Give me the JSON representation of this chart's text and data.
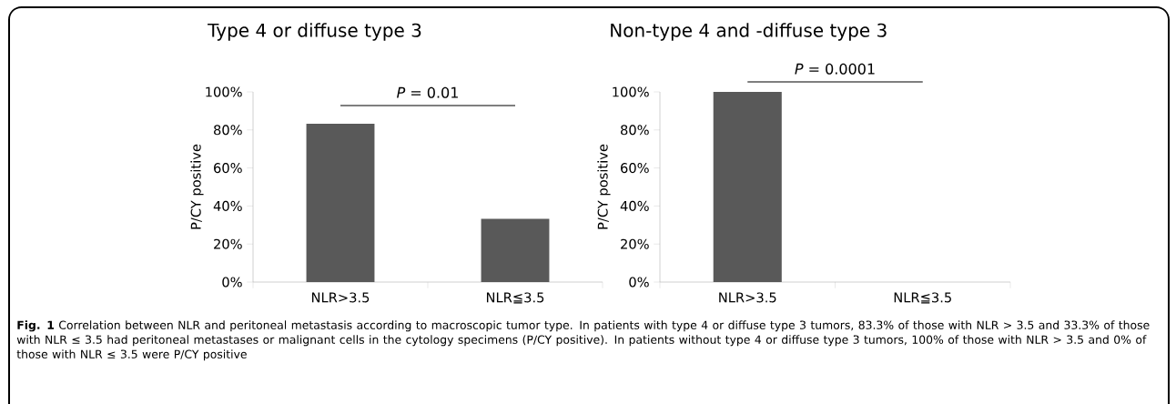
{
  "chart_data": [
    {
      "type": "bar",
      "title": "Type 4 or diffuse type 3",
      "ylabel": "P/CY positive",
      "categories": [
        "NLR>3.5",
        "NLR≦3.5"
      ],
      "values": [
        83.3,
        33.3
      ],
      "color": "#595959",
      "ylim": [
        0,
        100
      ],
      "yticks": [
        {
          "value": 0,
          "label": "0%"
        },
        {
          "value": 20,
          "label": "20%"
        },
        {
          "value": 40,
          "label": "40%"
        },
        {
          "value": 60,
          "label": "60%"
        },
        {
          "value": 80,
          "label": "80%"
        },
        {
          "value": 100,
          "label": "100%"
        }
      ],
      "annotations": [
        "*P* = 0.01",
        "**Fig. 1** Correlation between NLR and peritoneal metastasis according to macroscopic tumor type. In patients with type 4 or diffuse type 3 tumors, 83.3% of those with NLR > 3.5 and 33.3% of those with NLR ≤ 3.5 had peritoneal metastases or malignant cells in the cytology specimens (P/CY positive). In patients without type 4 or diffuse type 3 tumors, 100% of those with NLR > 3.5 and 0% of those with NLR ≤ 3.5 were P/CY positive"
      ]
    },
    {
      "type": "bar",
      "title": "Non-type 4 and -diffuse type 3",
      "ylabel": "P/CY positive",
      "categories": [
        "NLR>3.5",
        "NLR≦3.5"
      ],
      "values": [
        100,
        0
      ],
      "color": "#595959",
      "ylim": [
        0,
        100
      ],
      "yticks": [
        {
          "value": 0,
          "label": "0%"
        },
        {
          "value": 20,
          "label": "20%"
        },
        {
          "value": 40,
          "label": "40%"
        },
        {
          "value": 60,
          "label": "60%"
        },
        {
          "value": 80,
          "label": "80%"
        },
        {
          "value": 100,
          "label": "100%"
        }
      ],
      "annotations": [
        "*P* = 0.0001"
      ]
    }
  ]
}
